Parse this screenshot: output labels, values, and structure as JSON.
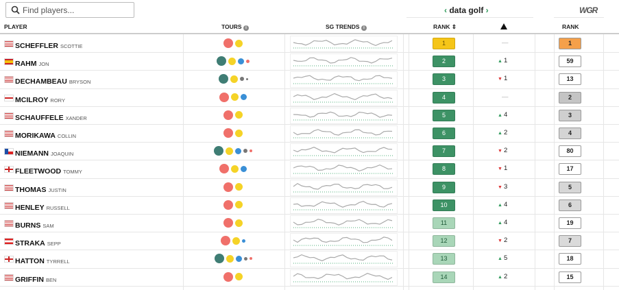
{
  "search": {
    "placeholder": "Find players..."
  },
  "brand": {
    "name": "data golf",
    "logo": "WGR"
  },
  "columns": {
    "player": "PLAYER",
    "tours": "TOURS",
    "trends": "SG TRENDS",
    "dg_rank": "RANK",
    "wgr_rank": "RANK"
  },
  "rows": [
    {
      "last": "SCHEFFLER",
      "first": "SCOTTIE",
      "dg_rank": 1,
      "change": "—",
      "wgr_rank": 1
    },
    {
      "last": "RAHM",
      "first": "JON",
      "dg_rank": 2,
      "direction": "up",
      "change": 1,
      "wgr_rank": 59
    },
    {
      "last": "DECHAMBEAU",
      "first": "BRYSON",
      "dg_rank": 3,
      "direction": "down",
      "change": 1,
      "wgr_rank": 13
    },
    {
      "last": "MCILROY",
      "first": "RORY",
      "dg_rank": 4,
      "change": "—",
      "wgr_rank": 2
    },
    {
      "last": "SCHAUFFELE",
      "first": "XANDER",
      "dg_rank": 5,
      "direction": "up",
      "change": 4,
      "wgr_rank": 3
    },
    {
      "last": "MORIKAWA",
      "first": "COLLIN",
      "dg_rank": 6,
      "direction": "up",
      "change": 2,
      "wgr_rank": 4
    },
    {
      "last": "NIEMANN",
      "first": "JOAQUIN",
      "dg_rank": 7,
      "direction": "down",
      "change": 2,
      "wgr_rank": 80
    },
    {
      "last": "FLEETWOOD",
      "first": "TOMMY",
      "dg_rank": 8,
      "direction": "down",
      "change": 1,
      "wgr_rank": 17
    },
    {
      "last": "THOMAS",
      "first": "JUSTIN",
      "dg_rank": 9,
      "direction": "down",
      "change": 3,
      "wgr_rank": 5
    },
    {
      "last": "HENLEY",
      "first": "RUSSELL",
      "dg_rank": 10,
      "direction": "up",
      "change": 4,
      "wgr_rank": 6
    },
    {
      "last": "BURNS",
      "first": "SAM",
      "dg_rank": 11,
      "direction": "up",
      "change": 4,
      "wgr_rank": 19
    },
    {
      "last": "STRAKA",
      "first": "SEPP",
      "dg_rank": 12,
      "direction": "down",
      "change": 2,
      "wgr_rank": 7
    },
    {
      "last": "HATTON",
      "first": "TYRRELL",
      "dg_rank": 13,
      "direction": "up",
      "change": 5,
      "wgr_rank": 18
    },
    {
      "last": "GRIFFIN",
      "first": "BEN",
      "dg_rank": 14,
      "direction": "up",
      "change": 2,
      "wgr_rank": 15
    }
  ]
}
